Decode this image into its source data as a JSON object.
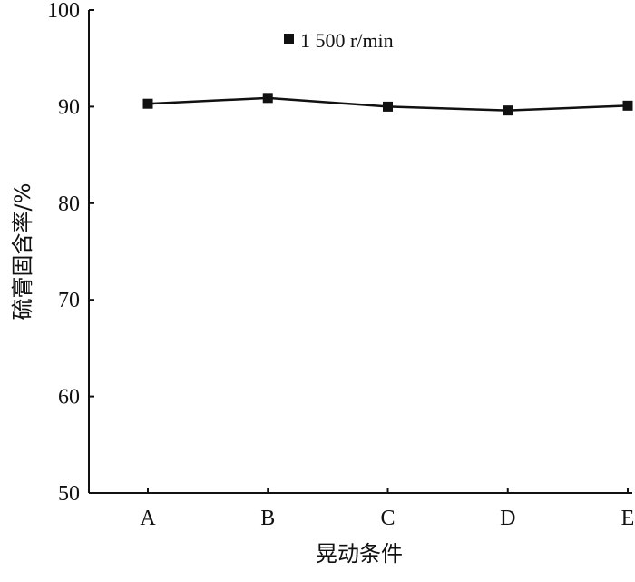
{
  "chart_data": {
    "type": "line",
    "title": "",
    "xlabel": "晃动条件",
    "ylabel": "硫膏固含率/%",
    "categories": [
      "A",
      "B",
      "C",
      "D",
      "E"
    ],
    "ylim": [
      50,
      100
    ],
    "yticks": [
      "50",
      "60",
      "70",
      "80",
      "90",
      "100"
    ],
    "series": [
      {
        "name": "1 500 r/min",
        "values": [
          90.3,
          90.9,
          90.0,
          89.6,
          90.1
        ]
      }
    ],
    "legend": "top-center",
    "grid": false,
    "colors": {
      "line": "#111111",
      "marker": "#111111"
    }
  }
}
